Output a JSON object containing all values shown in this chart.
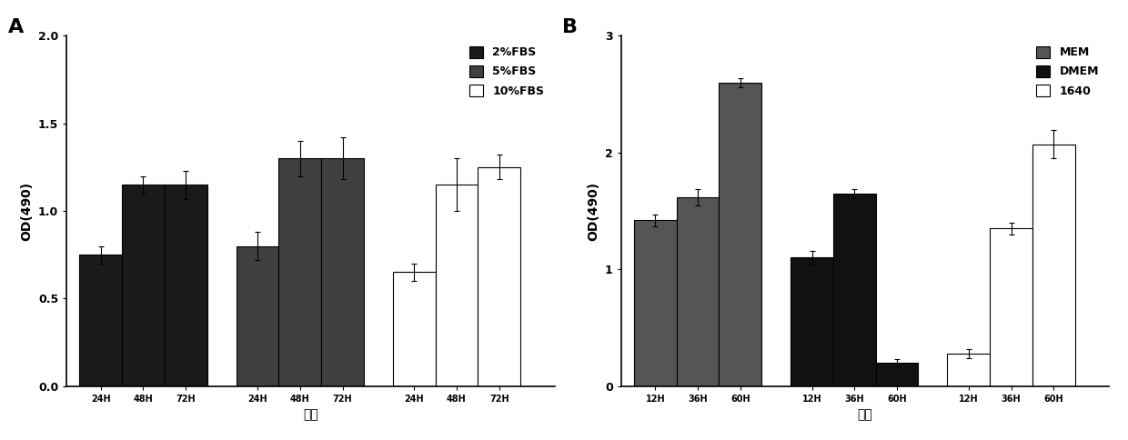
{
  "panel_A": {
    "title": "A",
    "ylabel": "OD(490)",
    "xlabel": "时间",
    "ylim": [
      0.0,
      2.0
    ],
    "yticks": [
      0.0,
      0.5,
      1.0,
      1.5,
      2.0
    ],
    "groups": [
      "2%FBS",
      "5%FBS",
      "10%FBS"
    ],
    "group_colors": [
      "#1a1a1a",
      "#404040",
      "#ffffff"
    ],
    "group_edgecolors": [
      "#000000",
      "#000000",
      "#000000"
    ],
    "timepoints": [
      "24H",
      "48H",
      "72H"
    ],
    "values": [
      [
        0.75,
        1.15,
        1.15
      ],
      [
        0.8,
        1.3,
        1.3
      ],
      [
        0.65,
        1.15,
        1.25
      ]
    ],
    "errors": [
      [
        0.05,
        0.05,
        0.08
      ],
      [
        0.08,
        0.1,
        0.12
      ],
      [
        0.05,
        0.15,
        0.07
      ]
    ]
  },
  "panel_B": {
    "title": "B",
    "ylabel": "OD(490)",
    "xlabel": "时间",
    "ylim": [
      0.0,
      3.0
    ],
    "yticks": [
      0,
      1,
      2,
      3
    ],
    "groups": [
      "MEM",
      "DMEM",
      "1640"
    ],
    "group_colors": [
      "#555555",
      "#111111",
      "#ffffff"
    ],
    "group_edgecolors": [
      "#000000",
      "#000000",
      "#000000"
    ],
    "timepoints": [
      "12H",
      "36H",
      "60H"
    ],
    "values": [
      [
        1.42,
        1.62,
        2.6
      ],
      [
        1.1,
        1.65,
        0.2
      ],
      [
        0.28,
        1.35,
        2.07
      ]
    ],
    "errors": [
      [
        0.05,
        0.07,
        0.04
      ],
      [
        0.06,
        0.04,
        0.03
      ],
      [
        0.04,
        0.05,
        0.12
      ]
    ]
  }
}
